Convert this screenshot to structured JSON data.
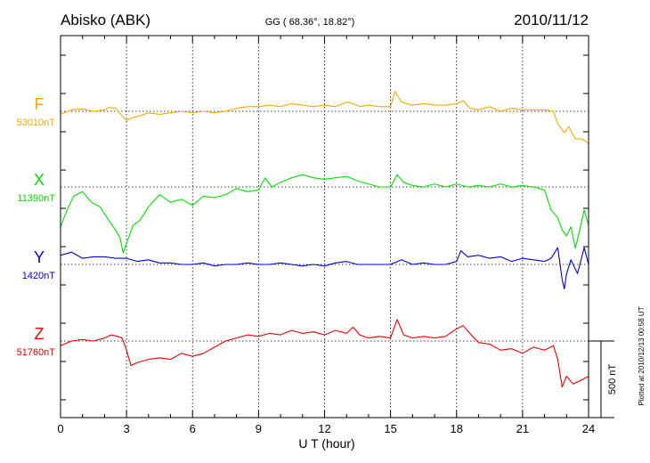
{
  "header": {
    "station": "Abisko (ABK)",
    "coords": "GG ( 68.36°,  18.82°)",
    "date": "2010/11/12"
  },
  "footer": {
    "plotted": "Plotted at 2010/12/13 00:58  UT"
  },
  "chart_data": {
    "type": "line",
    "xlabel": "U T (hour)",
    "xlim": [
      0,
      24
    ],
    "xticks": [
      "0",
      "3",
      "6",
      "9",
      "12",
      "15",
      "18",
      "21",
      "24"
    ],
    "grid": true,
    "scale_bar": {
      "label": "500 nT",
      "value": 500
    },
    "series": [
      {
        "name": "F",
        "baseline_label": "53010nT",
        "color": "#f5a800",
        "x": [
          0,
          0.5,
          1,
          1.5,
          2,
          2.2,
          2.5,
          2.8,
          3,
          3.3,
          3.6,
          4,
          4.5,
          5,
          5.5,
          6,
          6.5,
          7,
          7.5,
          8,
          8.5,
          9,
          9.5,
          10,
          10.5,
          11,
          11.5,
          12,
          12.5,
          13,
          13.3,
          13.6,
          14,
          14.5,
          15,
          15.2,
          15.5,
          16,
          16.5,
          17,
          17.5,
          18,
          18.3,
          18.6,
          19,
          19.5,
          20,
          20.5,
          21,
          21.5,
          22,
          22.4,
          22.6,
          22.9,
          23.1,
          23.4,
          23.7,
          24
        ],
        "y": [
          -20,
          10,
          15,
          0,
          10,
          25,
          20,
          -30,
          -60,
          -40,
          -30,
          -10,
          -20,
          -10,
          0,
          -10,
          0,
          -10,
          0,
          20,
          30,
          30,
          40,
          30,
          50,
          40,
          30,
          40,
          30,
          60,
          50,
          30,
          40,
          30,
          30,
          130,
          60,
          40,
          50,
          40,
          40,
          50,
          70,
          20,
          10,
          30,
          0,
          20,
          10,
          10,
          10,
          0,
          -80,
          -140,
          -100,
          -180,
          -180,
          -210
        ]
      },
      {
        "name": "X",
        "baseline_label": "11390nT",
        "color": "#00e000",
        "x": [
          0,
          0.3,
          0.6,
          1,
          1.4,
          1.8,
          2.2,
          2.5,
          2.7,
          2.85,
          3,
          3.3,
          3.6,
          4,
          4.5,
          5,
          5.5,
          6,
          6.5,
          7,
          7.5,
          8,
          8.5,
          9,
          9.3,
          9.6,
          10,
          10.5,
          11,
          11.5,
          12,
          12.5,
          13,
          13.5,
          14,
          14.5,
          15,
          15.3,
          15.6,
          16,
          16.5,
          17,
          17.5,
          18,
          18.5,
          19,
          19.5,
          20,
          20.5,
          21,
          21.5,
          22,
          22.3,
          22.6,
          22.8,
          23,
          23.2,
          23.4,
          23.6,
          23.8,
          24
        ],
        "y": [
          -260,
          -150,
          -60,
          -30,
          -100,
          -130,
          -220,
          -280,
          -330,
          -430,
          -370,
          -250,
          -220,
          -130,
          -50,
          -100,
          -80,
          -120,
          -60,
          -70,
          -50,
          -10,
          -30,
          -20,
          60,
          0,
          30,
          60,
          80,
          60,
          50,
          60,
          70,
          40,
          20,
          0,
          0,
          80,
          30,
          10,
          0,
          20,
          0,
          20,
          0,
          10,
          0,
          20,
          0,
          10,
          0,
          -20,
          -150,
          -200,
          -280,
          -320,
          -260,
          -400,
          -280,
          -150,
          -250
        ]
      },
      {
        "name": "Y",
        "baseline_label": "1420nT",
        "color": "#0000dd",
        "x": [
          0,
          0.5,
          1,
          1.5,
          2,
          2.5,
          3,
          3.5,
          4,
          4.5,
          5,
          5.5,
          6,
          6.5,
          7,
          7.5,
          8,
          8.5,
          9,
          9.5,
          10,
          10.5,
          11,
          11.5,
          12,
          12.5,
          13,
          13.5,
          14,
          14.5,
          15,
          15.5,
          16,
          16.5,
          17,
          17.5,
          18,
          18.2,
          18.5,
          19,
          19.5,
          20,
          20.5,
          21,
          21.5,
          22,
          22.3,
          22.6,
          22.8,
          22.9,
          23,
          23.2,
          23.5,
          23.8,
          24
        ],
        "y": [
          60,
          80,
          40,
          50,
          50,
          40,
          40,
          20,
          30,
          10,
          10,
          0,
          0,
          10,
          -10,
          0,
          0,
          10,
          0,
          0,
          10,
          0,
          -10,
          0,
          -10,
          10,
          20,
          0,
          0,
          0,
          0,
          30,
          0,
          10,
          0,
          0,
          20,
          90,
          50,
          60,
          40,
          50,
          20,
          40,
          30,
          20,
          40,
          110,
          -100,
          -160,
          -60,
          30,
          -60,
          110,
          0
        ]
      },
      {
        "name": "Z",
        "baseline_label": "51760nT",
        "color": "#ee0000",
        "x": [
          0,
          0.5,
          1,
          1.5,
          2,
          2.3,
          2.6,
          2.8,
          3,
          3.2,
          3.5,
          4,
          4.5,
          5,
          5.5,
          6,
          6.5,
          7,
          7.5,
          8,
          8.5,
          9,
          9.5,
          10,
          10.5,
          11,
          11.5,
          12,
          12.5,
          13,
          13.3,
          13.6,
          14,
          14.5,
          15,
          15.3,
          15.6,
          16,
          16.5,
          17,
          17.5,
          18,
          18.3,
          18.6,
          19,
          19.5,
          20,
          20.5,
          21,
          21.5,
          22,
          22.4,
          22.6,
          22.8,
          23,
          23.3,
          23.6,
          24
        ],
        "y": [
          -30,
          0,
          10,
          0,
          20,
          40,
          30,
          20,
          -60,
          -160,
          -140,
          -120,
          -110,
          -120,
          -80,
          -100,
          -80,
          -40,
          0,
          20,
          40,
          30,
          50,
          40,
          70,
          50,
          60,
          40,
          70,
          50,
          90,
          40,
          20,
          30,
          20,
          140,
          40,
          20,
          30,
          20,
          30,
          80,
          100,
          50,
          -10,
          -20,
          -60,
          -50,
          -80,
          -40,
          -60,
          -30,
          -120,
          -300,
          -230,
          -280,
          -260,
          -230
        ]
      }
    ]
  }
}
